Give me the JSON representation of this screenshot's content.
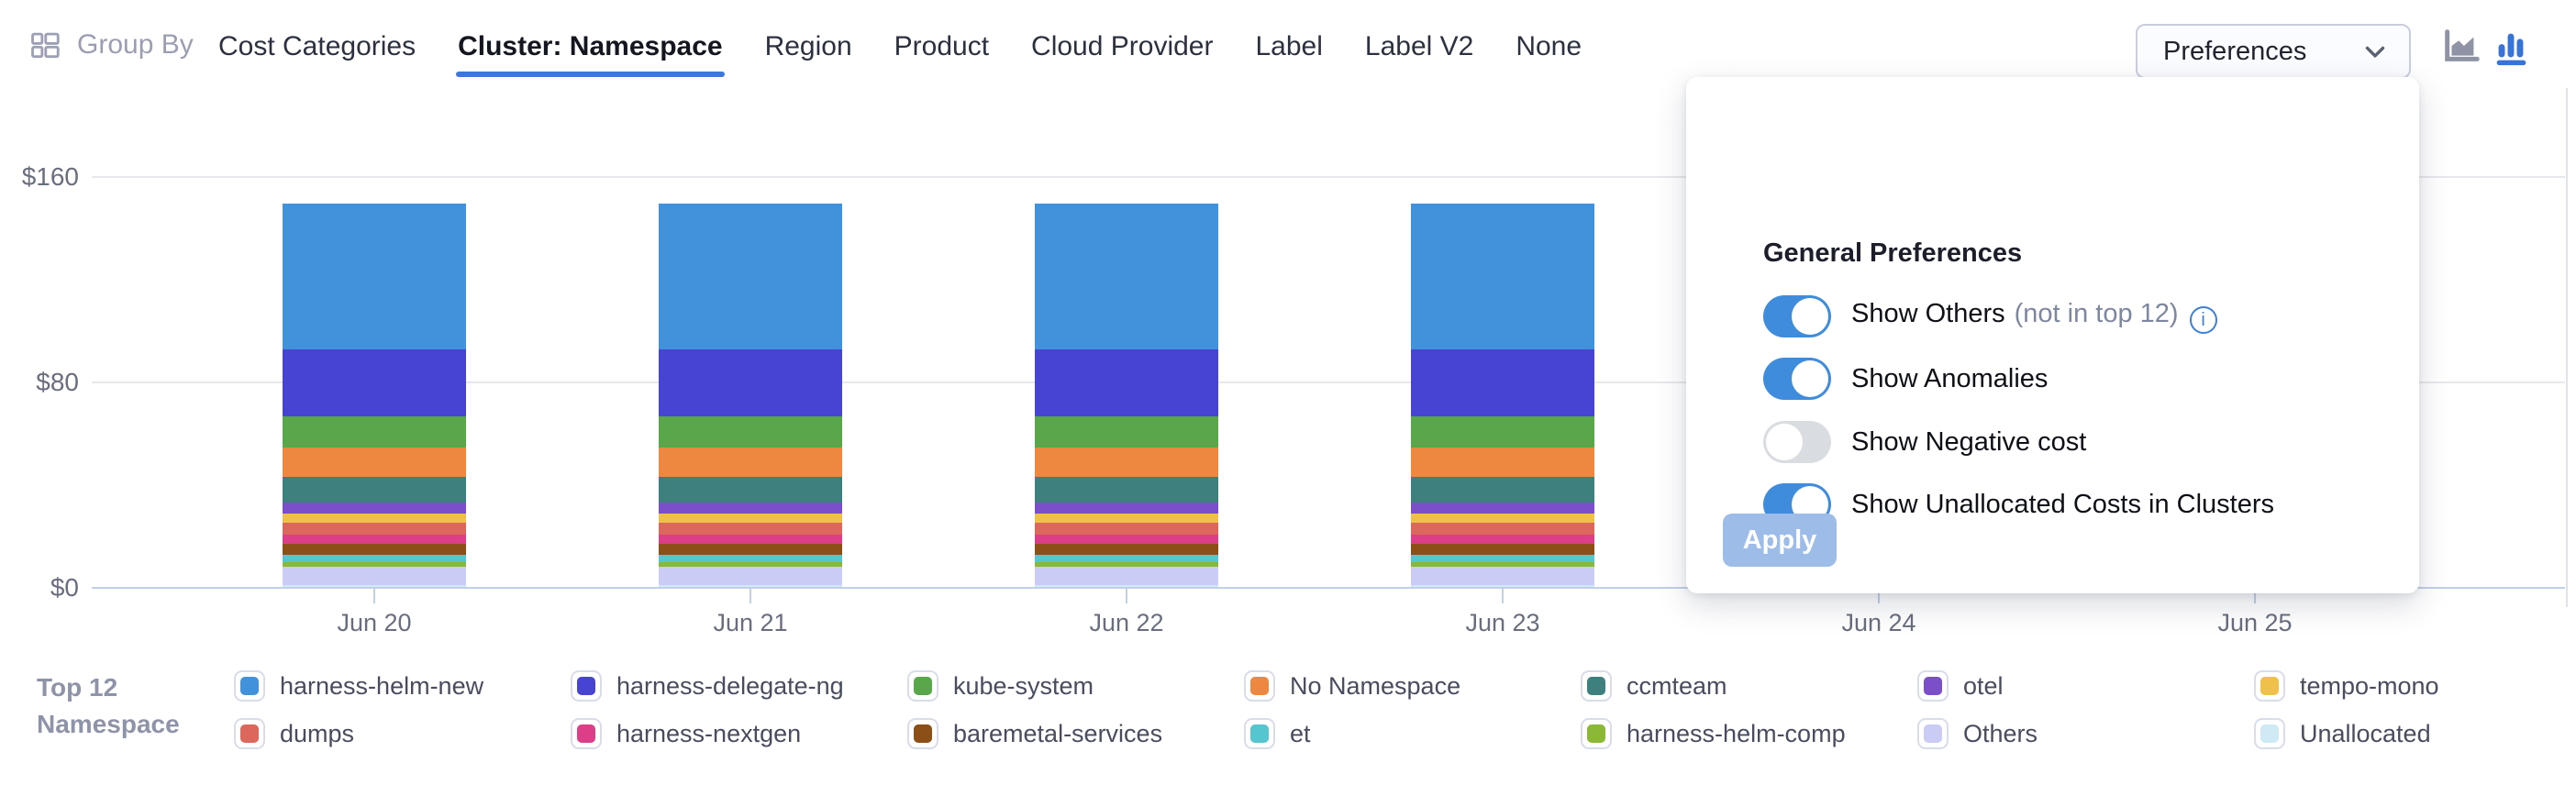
{
  "header": {
    "group_by_label": "Group By",
    "tabs": [
      {
        "label": "Cost Categories",
        "active": false
      },
      {
        "label": "Cluster: Namespace",
        "active": true
      },
      {
        "label": "Region",
        "active": false
      },
      {
        "label": "Product",
        "active": false
      },
      {
        "label": "Cloud Provider",
        "active": false
      },
      {
        "label": "Label",
        "active": false
      },
      {
        "label": "Label V2",
        "active": false
      },
      {
        "label": "None",
        "active": false
      }
    ],
    "preferences_button_label": "Preferences",
    "chart_type_icons": [
      {
        "name": "area-chart-icon",
        "active": false,
        "color": "#8f93a6"
      },
      {
        "name": "bar-chart-icon",
        "active": true,
        "color": "#3873d8"
      }
    ]
  },
  "preferences_panel": {
    "title": "General Preferences",
    "toggles": [
      {
        "label": "Show Others",
        "suffix": "(not in top 12)",
        "has_info_icon": true,
        "on": true
      },
      {
        "label": "Show Anomalies",
        "suffix": "",
        "has_info_icon": false,
        "on": true
      },
      {
        "label": "Show Negative cost",
        "suffix": "",
        "has_info_icon": false,
        "on": false
      },
      {
        "label": "Show Unallocated Costs in Clusters",
        "suffix": "",
        "has_info_icon": false,
        "on": true
      }
    ],
    "apply_label": "Apply"
  },
  "legend": {
    "title_line1": "Top 12",
    "title_line2": "Namespace"
  },
  "chart_data": {
    "type": "bar",
    "stacked": true,
    "categories": [
      "Jun 20",
      "Jun 21",
      "Jun 22",
      "Jun 23",
      "Jun 24",
      "Jun 25"
    ],
    "bars_drawn_for": [
      "Jun 20",
      "Jun 21",
      "Jun 22",
      "Jun 23"
    ],
    "note": "Bars for Jun 24 / Jun 25 area are hidden behind the open Preferences panel; values below are per visible day in USD, stack order top-to-bottom follows series order",
    "ylim": [
      0,
      160
    ],
    "y_ticks": [
      {
        "value": 160,
        "label": "$160"
      },
      {
        "value": 80,
        "label": "$80"
      },
      {
        "value": 0,
        "label": "$0"
      }
    ],
    "grid": true,
    "legend_position": "bottom",
    "series": [
      {
        "name": "harness-helm-new",
        "color": "#4191db",
        "values": [
          57,
          57,
          57,
          57
        ]
      },
      {
        "name": "harness-delegate-ng",
        "color": "#4743d3",
        "values": [
          26,
          26,
          26,
          26
        ]
      },
      {
        "name": "kube-system",
        "color": "#5aa74b",
        "values": [
          12.2,
          12.2,
          12.2,
          12.2
        ]
      },
      {
        "name": "No Namespace",
        "color": "#ee8840",
        "values": [
          11.4,
          11.4,
          11.4,
          11.4
        ]
      },
      {
        "name": "ccmteam",
        "color": "#3e807e",
        "values": [
          10.1,
          10.1,
          10.1,
          10.1
        ]
      },
      {
        "name": "otel",
        "color": "#7b4fc9",
        "values": [
          4.3,
          4.3,
          4.3,
          4.3
        ]
      },
      {
        "name": "tempo-mono",
        "color": "#f0c14a",
        "values": [
          3.5,
          3.5,
          3.5,
          3.5
        ]
      },
      {
        "name": "dumps",
        "color": "#dc675d",
        "values": [
          4.7,
          4.7,
          4.7,
          4.7
        ]
      },
      {
        "name": "harness-nextgen",
        "color": "#dc3f88",
        "values": [
          3.6,
          3.6,
          3.6,
          3.6
        ]
      },
      {
        "name": "baremetal-services",
        "color": "#8d4f18",
        "values": [
          4.3,
          4.3,
          4.3,
          4.3
        ]
      },
      {
        "name": "et",
        "color": "#55c6d0",
        "values": [
          2.8,
          2.8,
          2.8,
          2.8
        ]
      },
      {
        "name": "harness-helm-comp",
        "color": "#8cb837",
        "values": [
          1.8,
          1.8,
          1.8,
          1.8
        ]
      },
      {
        "name": "Others",
        "color": "#cbccf6",
        "values": [
          7,
          7,
          7,
          7
        ]
      },
      {
        "name": "Unallocated",
        "color": "#cfe9f5",
        "values": [
          1.1,
          1.1,
          1.1,
          1.1
        ]
      }
    ]
  }
}
